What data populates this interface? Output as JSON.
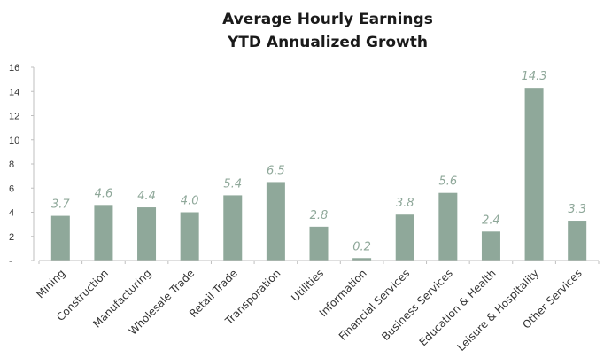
{
  "chart_data": {
    "type": "bar",
    "title": [
      "Average Hourly Earnings",
      "YTD Annualized Growth"
    ],
    "xlabel": "",
    "ylabel": "",
    "ylim": [
      0,
      16
    ],
    "yticks": [
      0,
      2,
      4,
      6,
      8,
      10,
      12,
      14,
      16
    ],
    "ytick_labels": [
      "-",
      "2",
      "4",
      "6",
      "8",
      "10",
      "12",
      "14",
      "16"
    ],
    "categories": [
      "Mining",
      "Construction",
      "Manufacturing",
      "Wholesale Trade",
      "Retail Trade",
      "Transporation",
      "Utilities",
      "Information",
      "Financial Services",
      "Business Services",
      "Education & Health",
      "Leisure & Hospitality",
      "Other Services"
    ],
    "values": [
      3.7,
      4.6,
      4.4,
      4.0,
      5.4,
      6.5,
      2.8,
      0.2,
      3.8,
      5.6,
      2.4,
      14.3,
      3.3
    ],
    "data_labels": [
      "3.7",
      "4.6",
      "4.4",
      "4.0",
      "5.4",
      "6.5",
      "2.8",
      "0.2",
      "3.8",
      "5.6",
      "2.4",
      "14.3",
      "3.3"
    ],
    "grid": false,
    "colors": {
      "bar": "#8fa89a",
      "label": "#8fa89a",
      "axis": "#bfbfbf",
      "tick_text": "#333333"
    }
  }
}
